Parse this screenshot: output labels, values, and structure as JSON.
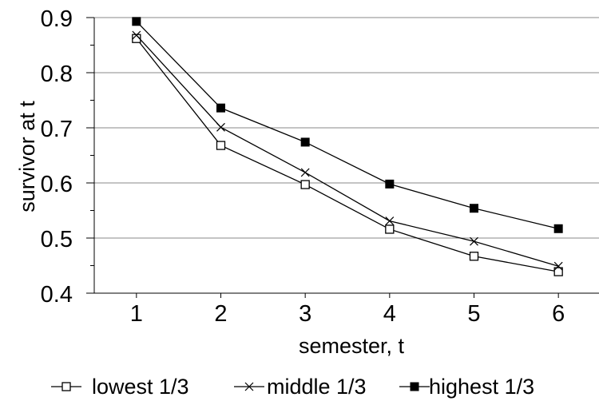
{
  "chart_data": {
    "type": "line",
    "title": "",
    "xlabel": "semester, t",
    "ylabel": "survivor at t",
    "x": [
      1,
      2,
      3,
      4,
      5,
      6
    ],
    "xlim": [
      0.5,
      6.5
    ],
    "ylim": [
      0.4,
      0.9
    ],
    "xticks": [
      "1",
      "2",
      "3",
      "4",
      "5",
      "6"
    ],
    "yticks": [
      "0.4",
      "0.5",
      "0.6",
      "0.7",
      "0.8",
      "0.9"
    ],
    "grid": "horizontal",
    "legend_position": "bottom",
    "series": [
      {
        "name": "lowest 1/3",
        "marker": "open-square",
        "values": [
          0.862,
          0.668,
          0.597,
          0.516,
          0.467,
          0.439
        ]
      },
      {
        "name": "middle 1/3",
        "marker": "x",
        "values": [
          0.868,
          0.701,
          0.619,
          0.531,
          0.494,
          0.449
        ]
      },
      {
        "name": "highest 1/3",
        "marker": "filled-square",
        "values": [
          0.893,
          0.736,
          0.674,
          0.598,
          0.554,
          0.517
        ]
      }
    ]
  }
}
